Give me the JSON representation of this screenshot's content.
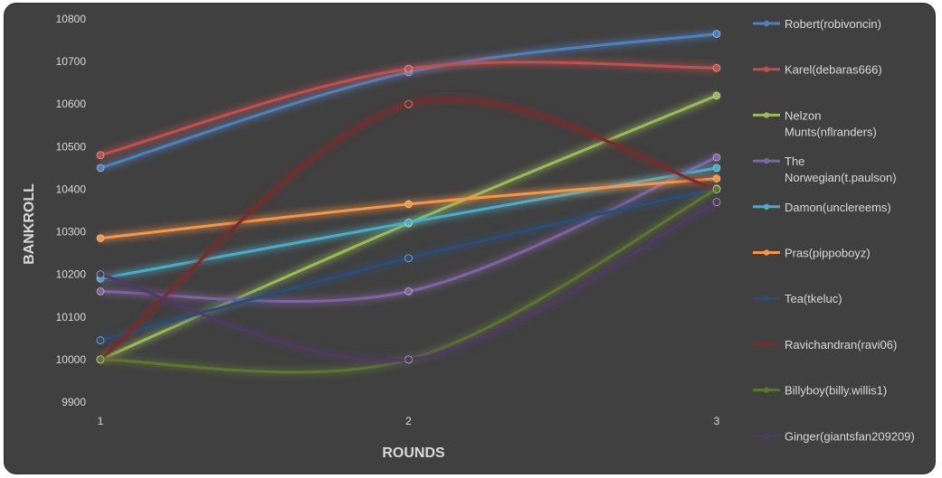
{
  "chart_data": {
    "type": "line",
    "title": "",
    "xlabel": "ROUNDS",
    "ylabel": "BANKROLL",
    "x": [
      1,
      2,
      3
    ],
    "x_tick_labels": [
      "1",
      "2",
      "3"
    ],
    "ylim": [
      9900,
      10800
    ],
    "y_ticks": [
      9900,
      10000,
      10100,
      10200,
      10300,
      10400,
      10500,
      10600,
      10700,
      10800
    ],
    "y_tick_labels": [
      "9900",
      "10000",
      "10100",
      "10200",
      "10300",
      "10400",
      "10500",
      "10600",
      "10700",
      "10800"
    ],
    "grid": false,
    "legend_position": "right",
    "series": [
      {
        "name": "Robert(robivoncin)",
        "legend_lines": [
          "Robert(robivoncin)"
        ],
        "values": [
          10450,
          10675,
          10765
        ],
        "color": "#4f81bd"
      },
      {
        "name": "Karel(debaras666)",
        "legend_lines": [
          "Karel(debaras666)"
        ],
        "values": [
          10480,
          10683,
          10685
        ],
        "color": "#c0504d"
      },
      {
        "name": "Nelzon Munts(nflranders)",
        "legend_lines": [
          "Nelzon",
          "Munts(nflranders)"
        ],
        "values": [
          10000,
          10320,
          10620
        ],
        "color": "#9bbb59"
      },
      {
        "name": "The Norwegian(t.paulson)",
        "legend_lines": [
          "The",
          "Norwegian(t.paulson)"
        ],
        "values": [
          10160,
          10160,
          10475
        ],
        "color": "#8064a2"
      },
      {
        "name": "Damon(unclereems)",
        "legend_lines": [
          "Damon(unclereems)"
        ],
        "values": [
          10190,
          10322,
          10450
        ],
        "color": "#4bacc6"
      },
      {
        "name": "Pras(pippoboyz)",
        "legend_lines": [
          "Pras(pippoboyz)"
        ],
        "values": [
          10285,
          10365,
          10425
        ],
        "color": "#f79646"
      },
      {
        "name": "Tea(tkeluc)",
        "legend_lines": [
          "Tea(tkeluc)"
        ],
        "values": [
          10045,
          10238,
          10402
        ],
        "color": "#2c4d75"
      },
      {
        "name": "Ravichandran(ravi06)",
        "legend_lines": [
          "Ravichandran(ravi06)"
        ],
        "values": [
          10000,
          10600,
          10400
        ],
        "color": "#772c2a"
      },
      {
        "name": "Billyboy(billy.willis1)",
        "legend_lines": [
          "Billyboy(billy.willis1)"
        ],
        "values": [
          10000,
          10000,
          10400
        ],
        "color": "#5f7530"
      },
      {
        "name": "Ginger(giantsfan209209)",
        "legend_lines": [
          "Ginger(giantsfan209209)"
        ],
        "values": [
          10200,
          10000,
          10370
        ],
        "color": "#4d3b62"
      }
    ]
  }
}
